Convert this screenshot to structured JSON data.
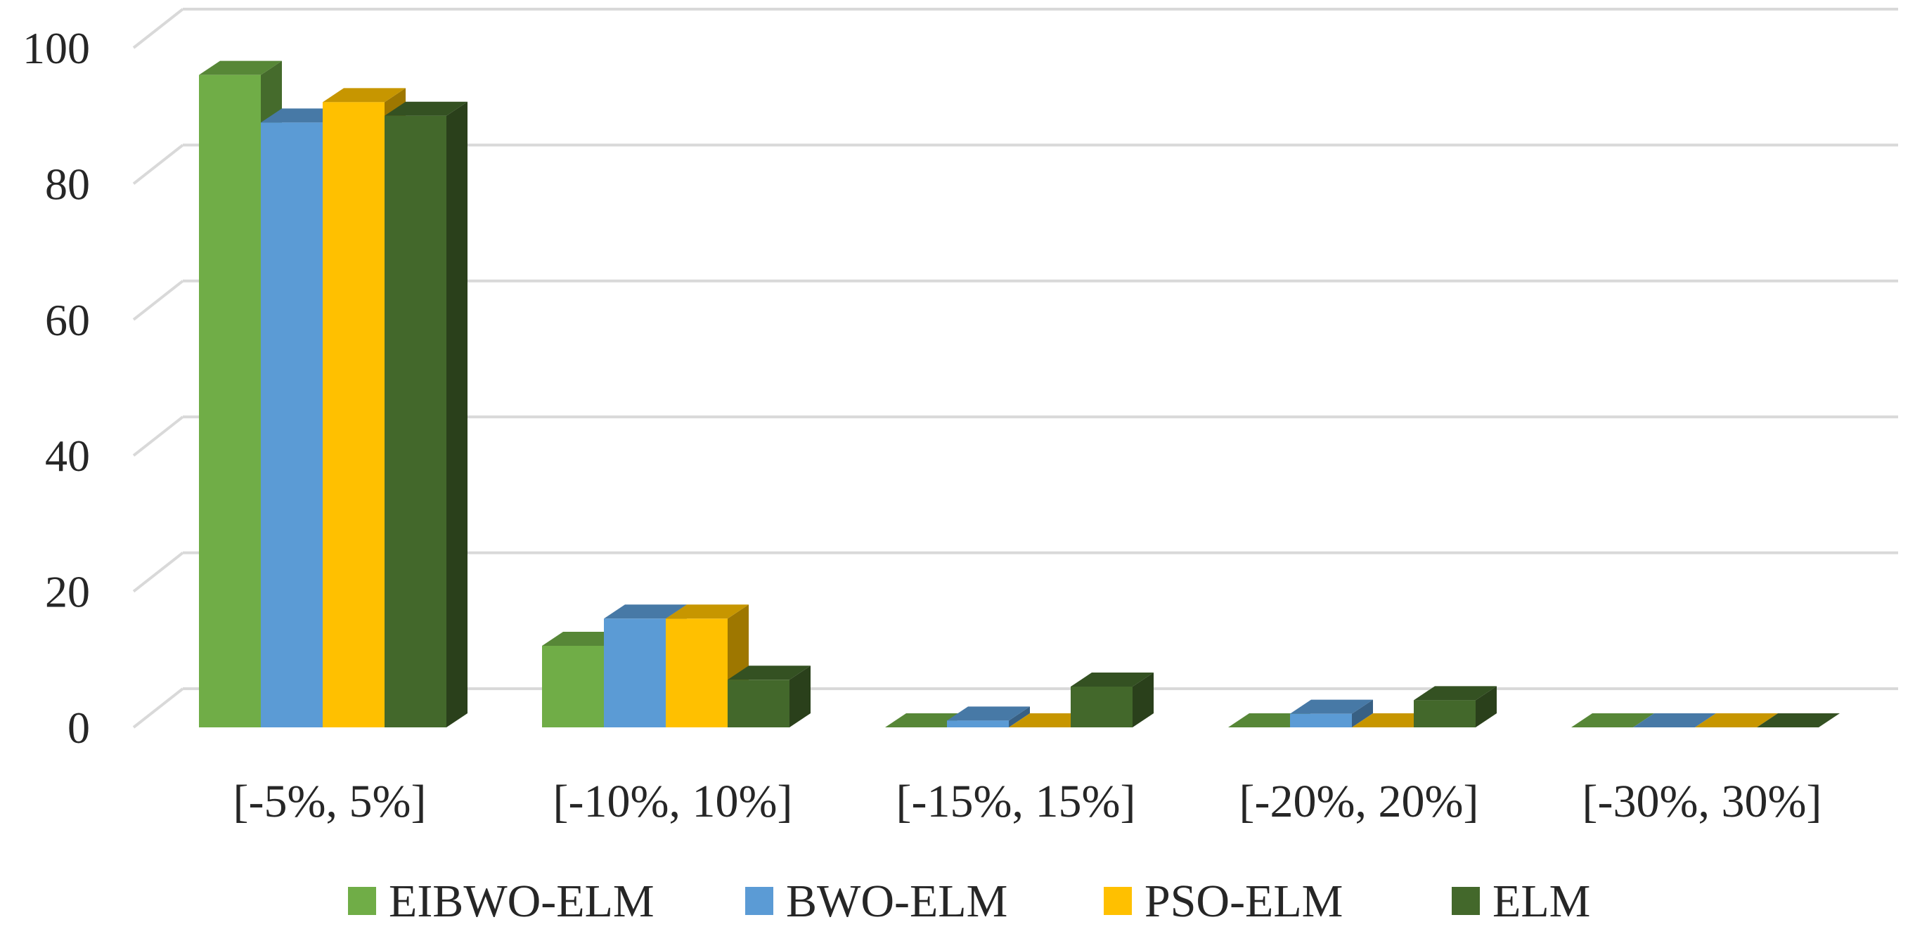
{
  "chart_data": {
    "type": "bar",
    "style": "3d-clustered-column",
    "title": "",
    "xlabel": "",
    "ylabel": "",
    "categories": [
      "[-5%, 5%]",
      "[-10%, 10%]",
      "[-15%, 15%]",
      "[-20%, 20%]",
      "[-30%, 30%]"
    ],
    "series": [
      {
        "name": "EIBWO-ELM",
        "color": "#70ad47",
        "values": [
          96,
          12,
          0,
          0,
          0
        ]
      },
      {
        "name": "BWO-ELM",
        "color": "#5b9bd5",
        "values": [
          89,
          16,
          1,
          2,
          0
        ]
      },
      {
        "name": "PSO-ELM",
        "color": "#ffc000",
        "values": [
          92,
          16,
          0,
          0,
          0
        ]
      },
      {
        "name": "ELM",
        "color": "#43682b",
        "values": [
          90,
          7,
          6,
          4,
          0
        ]
      }
    ],
    "ylim": [
      0,
      100
    ],
    "yticks": [
      0,
      20,
      40,
      60,
      80,
      100
    ],
    "grid": true,
    "legend_position": "bottom"
  }
}
